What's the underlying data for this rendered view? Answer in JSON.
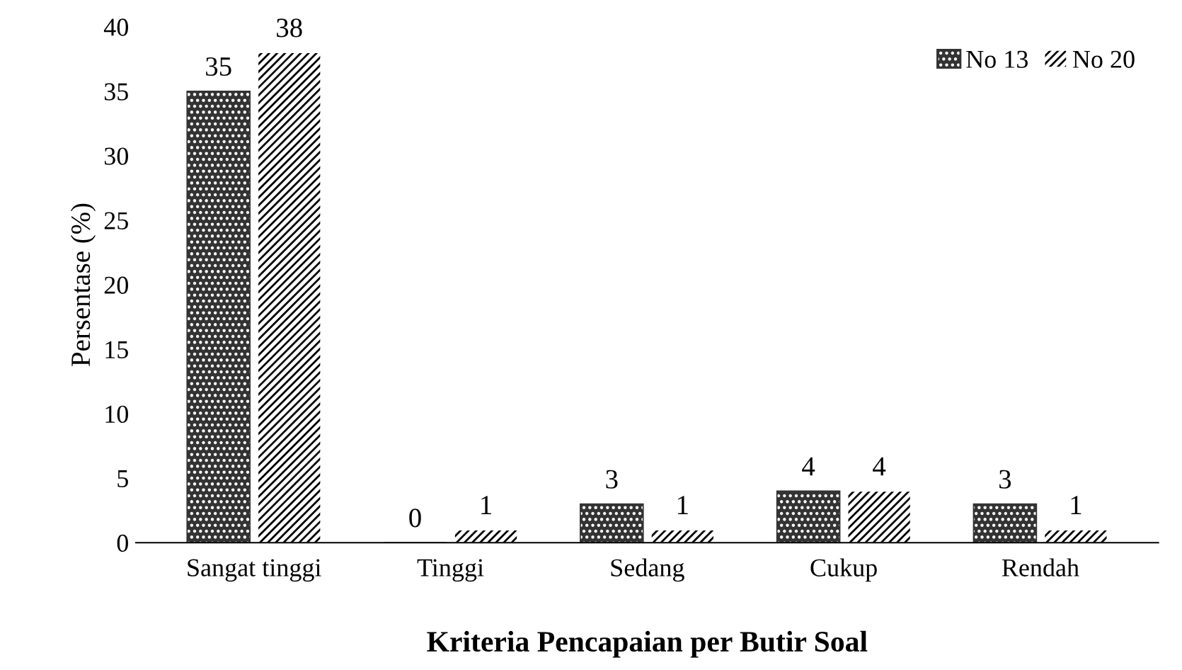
{
  "chart_data": {
    "type": "bar",
    "xlabel": "Kriteria Pencapaian per Butir Soal",
    "ylabel": "Persentase (%)",
    "categories": [
      "Sangat tinggi",
      "Tinggi",
      "Sedang",
      "Cukup",
      "Rendah"
    ],
    "series": [
      {
        "name": "No 13",
        "color": "#333333",
        "values": [
          35,
          0,
          3,
          4,
          3
        ]
      },
      {
        "name": "No 20",
        "color": "#ffffff",
        "values": [
          38,
          1,
          1,
          4,
          1
        ]
      }
    ],
    "ylim": [
      0,
      40
    ],
    "yticks": [
      0,
      5,
      10,
      15,
      20,
      25,
      30,
      35,
      40
    ],
    "grid": false,
    "legend": "top right",
    "data_labels": true
  }
}
